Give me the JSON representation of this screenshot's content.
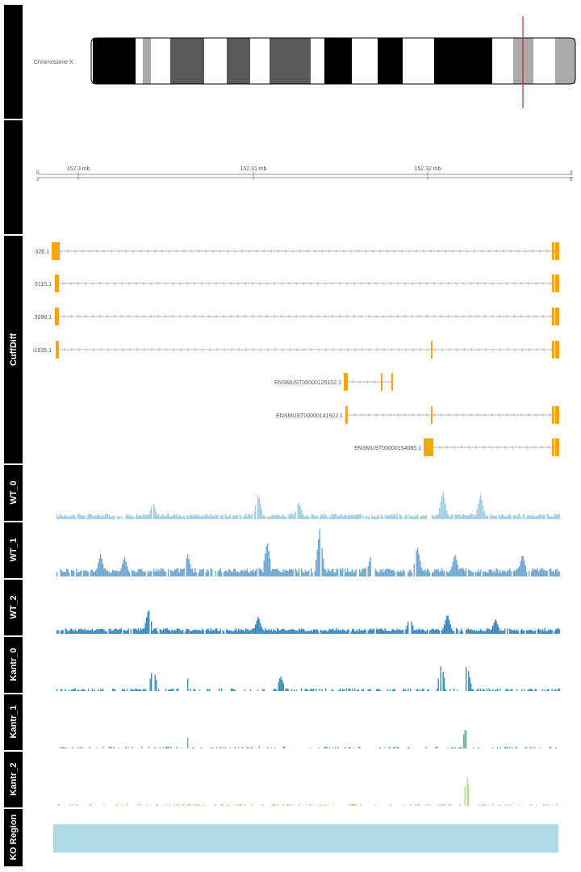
{
  "chromosome": {
    "label": "Chromosome X",
    "bands": [
      "black",
      "white",
      "gray-light",
      "white",
      "gray-dark",
      "gray-dark",
      "white",
      "gray-dark",
      "white",
      "gray-dark",
      "gray-dark",
      "white",
      "black",
      "white",
      "black",
      "white",
      "black",
      "black",
      "white",
      "gray-light",
      "white",
      "gray-light",
      "white"
    ]
  },
  "axis": {
    "ticks": [
      "152.3 mb",
      "152.31 mb",
      "152.32 mb"
    ],
    "end_left": "5'",
    "end_right": "3'"
  },
  "tracks": {
    "cuffdiff": "CuffDiff",
    "wt0": "WT_0",
    "wt1": "WT_1",
    "wt2": "WT_2",
    "kantr0": "Kantr_0",
    "kantr1": "Kantr_1",
    "kantr2": "Kantr_2",
    "ko": "KO Region"
  },
  "transcripts": [
    {
      "label": "326.1"
    },
    {
      "label": "5115.1"
    },
    {
      "label": "3098.1"
    },
    {
      "label": "i1635.1"
    },
    {
      "label": "ENSMUST00000125102.1"
    },
    {
      "label": "ENSMUST00000141922.1"
    },
    {
      "label": "ENSMUST00000154085.1"
    }
  ],
  "colors": {
    "panel_bg": "#000000",
    "exon": "#f5a512",
    "intron": "#b5b5b5",
    "wt0": "#a6cee3",
    "wt1": "#6ea8d1",
    "wt2": "#3a88c0",
    "kantr0": "#3d8fb0",
    "kantr1": "#73b39a",
    "kantr2": "#b2df8a",
    "ko": "#add8e6",
    "marker": "#e31a1c"
  },
  "chart_data": {
    "type": "area",
    "title": "",
    "xlabel": "",
    "ylabel": "",
    "xlim_mb": [
      152.2975,
      152.3335
    ],
    "series": [
      {
        "name": "WT_0",
        "peaks_mb": [
          152.298,
          152.3054,
          152.3124,
          152.3151,
          152.3247,
          152.3272,
          152.3333
        ],
        "values": [
          0.8,
          0.35,
          0.5,
          0.35,
          0.55,
          0.5,
          0.9
        ]
      },
      {
        "name": "WT_1",
        "peaks_mb": [
          152.3019,
          152.3035,
          152.3077,
          152.313,
          152.3165,
          152.3199,
          152.323,
          152.3255,
          152.33,
          152.3333
        ],
        "values": [
          0.45,
          0.4,
          0.45,
          0.7,
          0.95,
          0.4,
          0.6,
          0.45,
          0.45,
          0.95
        ]
      },
      {
        "name": "WT_2",
        "peaks_mb": [
          152.298,
          152.3051,
          152.3124,
          152.3225,
          152.325,
          152.3282,
          152.3333
        ],
        "values": [
          0.95,
          0.5,
          0.35,
          0.35,
          0.4,
          0.3,
          0.95
        ]
      },
      {
        "name": "Kantr_0",
        "peaks_mb": [
          152.3054,
          152.3075,
          152.3139,
          152.3246,
          152.3263
        ],
        "values": [
          0.5,
          0.55,
          0.3,
          0.55,
          0.55
        ]
      },
      {
        "name": "Kantr_1",
        "peaks_mb": [
          152.3076,
          152.3246,
          152.3262
        ],
        "values": [
          0.3,
          0.4,
          0.4
        ]
      },
      {
        "name": "Kantr_2",
        "peaks_mb": [
          152.3263
        ],
        "values": [
          0.6
        ]
      }
    ]
  }
}
